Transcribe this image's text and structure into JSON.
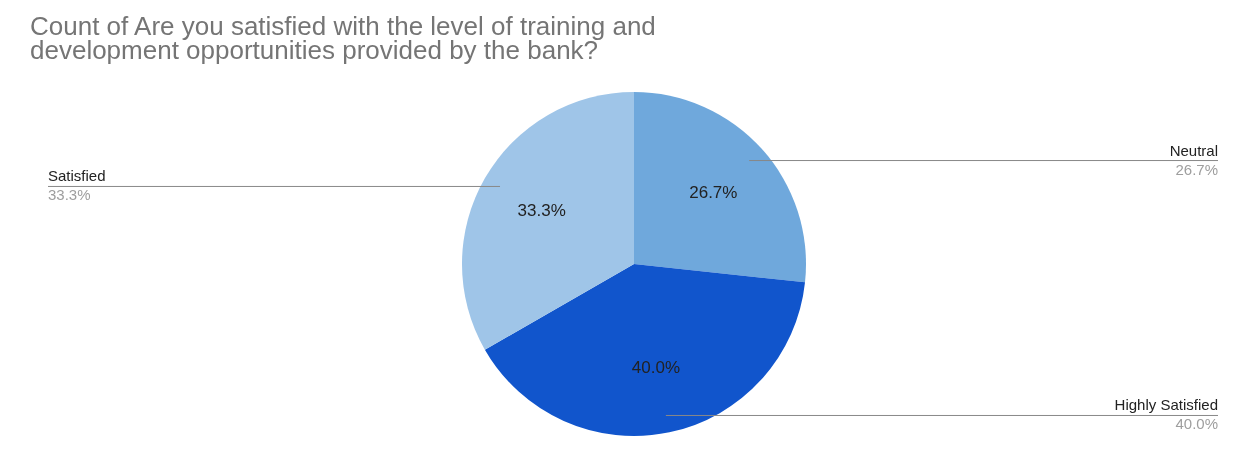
{
  "chart_data": {
    "type": "pie",
    "title": "Count of Are you satisfied with the level of training and development opportunities provided by the bank?",
    "categories": [
      "Neutral",
      "Highly Satisfied",
      "Satisfied"
    ],
    "values": [
      26.7,
      40.0,
      33.3
    ],
    "colors": [
      "#6fa8dc",
      "#1155cc",
      "#9fc5e8"
    ],
    "value_labels": [
      "26.7%",
      "40.0%",
      "33.3%"
    ],
    "legend": false
  }
}
